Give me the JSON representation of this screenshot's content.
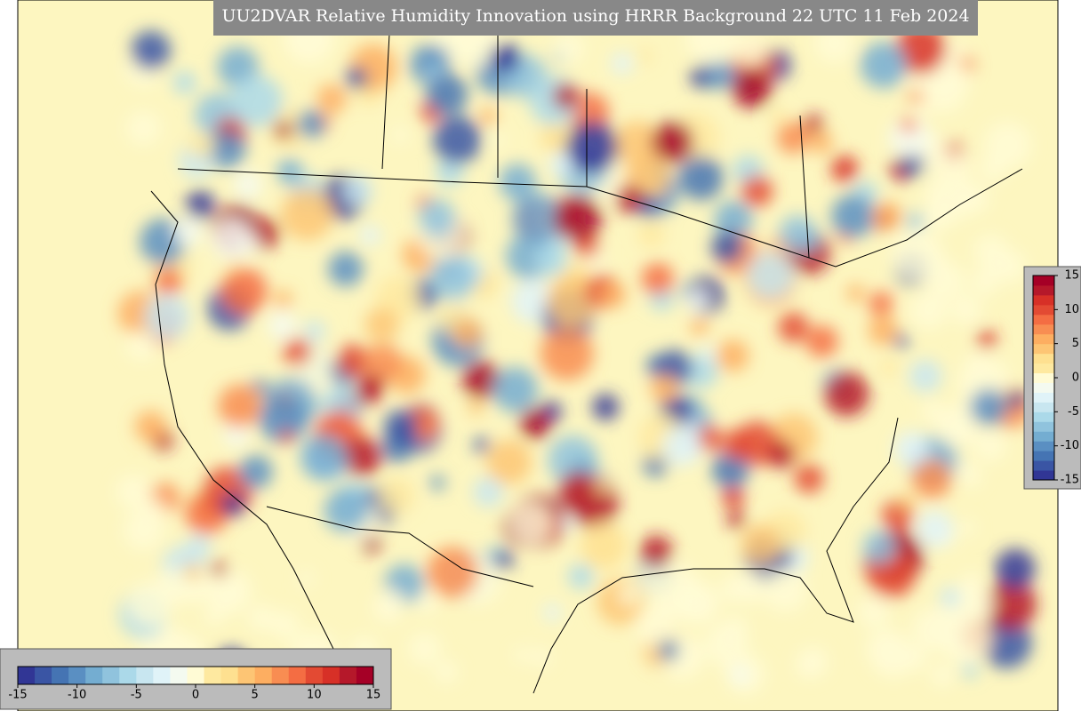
{
  "title": "UU2DVAR Relative Humidity Innovation using HRRR Background 22 UTC 11 Feb 2024",
  "colorbar": {
    "range": [
      -15,
      15
    ],
    "ticks": [
      -15,
      -10,
      -5,
      0,
      5,
      10,
      15
    ],
    "colors": [
      "#313695",
      "#3a55a4",
      "#4574b3",
      "#5a8fc2",
      "#74add1",
      "#90c3dd",
      "#abd9e9",
      "#c8e6f0",
      "#e0f3f8",
      "#f4faf0",
      "#fffbd5",
      "#fee9a0",
      "#fee090",
      "#fdc574",
      "#fdae61",
      "#f88d52",
      "#f46d43",
      "#e34a33",
      "#d73027",
      "#b5182a",
      "#a50026"
    ]
  }
}
